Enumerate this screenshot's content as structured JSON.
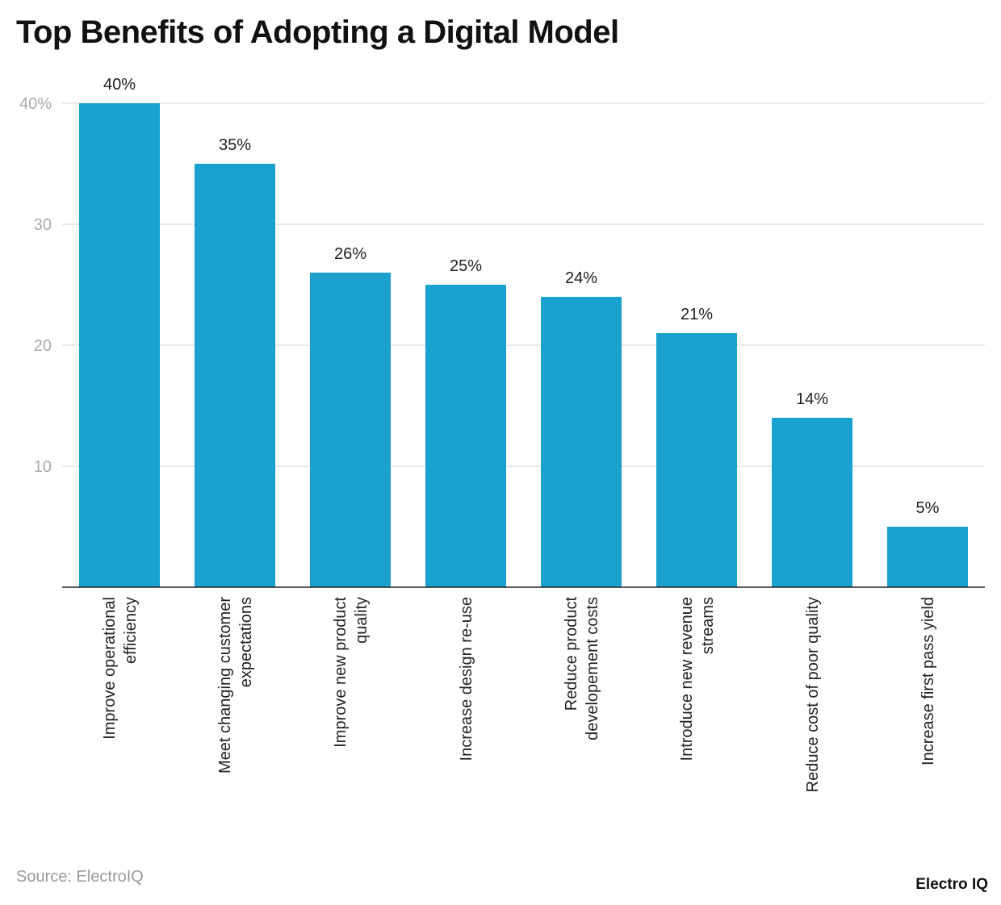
{
  "title": "Top Benefits of Adopting a Digital Model",
  "source": "Source: ElectroIQ",
  "logo": "Electro IQ",
  "chart_data": {
    "type": "bar",
    "title": "Top Benefits of Adopting a Digital Model",
    "categories": [
      "Improve operational\nefficiency",
      "Meet changing customer\nexpectations",
      "Improve new product\nquality",
      "Increase design re-use",
      "Reduce product\ndevelopement costs",
      "Introduce new revenue\nstreams",
      "Reduce cost of poor quality",
      "Increase first pass yield"
    ],
    "values": [
      40,
      35,
      26,
      25,
      24,
      21,
      14,
      5
    ],
    "data_labels": [
      "40%",
      "35%",
      "26%",
      "25%",
      "24%",
      "21%",
      "14%",
      "5%"
    ],
    "ylim": [
      0,
      40
    ],
    "yticks": [
      10,
      20,
      30,
      40
    ],
    "ytick_labels": [
      "10",
      "20",
      "30",
      "40%"
    ],
    "grid": true,
    "bar_color": "#1aa1cd",
    "xlabel": "",
    "ylabel": ""
  }
}
